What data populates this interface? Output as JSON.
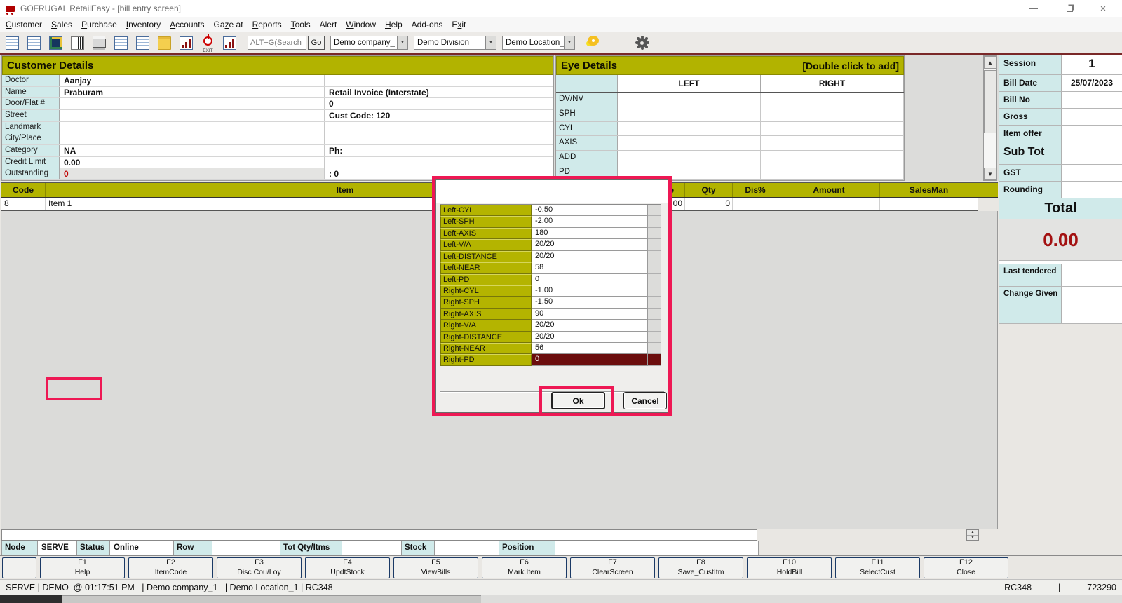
{
  "colors": {
    "accent_olive": "#b2b300",
    "accent_cyan": "#d0eaea",
    "annotation_pink": "#ee1854",
    "selected_maroon": "#6b0d0d",
    "total_red": "#a31111",
    "toolbar_rule_maroon": "#7a2828"
  },
  "titlebar": {
    "title": "GOFRUGAL RetailEasy - [bill entry screen]"
  },
  "menu": [
    {
      "name": "menu-customer",
      "pre": "",
      "u": "C",
      "post": "ustomer"
    },
    {
      "name": "menu-sales",
      "pre": "",
      "u": "S",
      "post": "ales"
    },
    {
      "name": "menu-purchase",
      "pre": "",
      "u": "P",
      "post": "urchase"
    },
    {
      "name": "menu-inventory",
      "pre": "",
      "u": "I",
      "post": "nventory"
    },
    {
      "name": "menu-accounts",
      "pre": "",
      "u": "A",
      "post": "ccounts"
    },
    {
      "name": "menu-gaze-at",
      "pre": "Ga",
      "u": "z",
      "post": "e at"
    },
    {
      "name": "menu-reports",
      "pre": "",
      "u": "R",
      "post": "eports"
    },
    {
      "name": "menu-tools",
      "pre": "",
      "u": "T",
      "post": "ools"
    },
    {
      "name": "menu-alert",
      "pre": "Alert",
      "u": "",
      "post": ""
    },
    {
      "name": "menu-window",
      "pre": "",
      "u": "W",
      "post": "indow"
    },
    {
      "name": "menu-help",
      "pre": "",
      "u": "H",
      "post": "elp"
    },
    {
      "name": "menu-add-ons",
      "pre": "Add-ons",
      "u": "",
      "post": ""
    },
    {
      "name": "menu-exit",
      "pre": "E",
      "u": "x",
      "post": "it"
    }
  ],
  "toolbar": {
    "icons": [
      {
        "name": "billing-icon"
      },
      {
        "name": "sales-bill-icon"
      },
      {
        "name": "customer-photo-icon"
      },
      {
        "name": "barcode-icon"
      },
      {
        "name": "printer-icon"
      },
      {
        "name": "invoice-icon"
      },
      {
        "name": "item-cart-icon"
      },
      {
        "name": "folder-open-icon"
      },
      {
        "name": "sales-chart-icon"
      },
      {
        "name": "exit-power-icon",
        "caption": "EXIT"
      },
      {
        "name": "report-chart-icon"
      }
    ],
    "search": {
      "placeholder": "ALT+G(Search",
      "go": {
        "u": "G",
        "post": "o"
      }
    },
    "dropdowns": [
      {
        "name": "company-dropdown",
        "value": "Demo company_"
      },
      {
        "name": "division-dropdown",
        "value": "Demo Division"
      },
      {
        "name": "location-dropdown",
        "value": "Demo Location_"
      }
    ]
  },
  "customer": {
    "header": "Customer Details",
    "rows": [
      {
        "label": "Doctor",
        "v1": "Aanjay",
        "v2": ""
      },
      {
        "label": "Name",
        "v1": "Praburam",
        "v2": "Retail Invoice (Interstate)"
      },
      {
        "label": "Door/Flat #",
        "v1": "",
        "v2": "0"
      },
      {
        "label": "Street",
        "v1": "",
        "v2": "Cust Code: 120"
      },
      {
        "label": "Landmark",
        "v1": "",
        "v2": ""
      },
      {
        "label": "City/Place",
        "v1": "",
        "v2": ""
      },
      {
        "label": "Category",
        "v1": "NA",
        "v2": "Ph:"
      },
      {
        "label": "Credit Limit",
        "v1": "0.00",
        "v2": ""
      },
      {
        "label": "Outstanding",
        "v1": "0",
        "v2": ": 0",
        "state": "outstanding"
      }
    ]
  },
  "eye": {
    "header": "Eye Details",
    "hint": "[Double click to add]",
    "col_left": "LEFT",
    "col_right": "RIGHT",
    "rows": [
      "DV/NV",
      "SPH",
      "CYL",
      "AXIS",
      "ADD",
      "PD"
    ]
  },
  "sidebar": {
    "rows": [
      {
        "label": "Session",
        "value": "1",
        "state": "session"
      },
      {
        "label": "Bill Date",
        "value": "25/07/2023",
        "state": "billdate"
      },
      {
        "label": "Bill No",
        "value": ""
      },
      {
        "label": "Gross",
        "value": ""
      },
      {
        "label": "Item offer",
        "value": ""
      },
      {
        "label": "Sub Tot",
        "value": "",
        "state": "subtot"
      },
      {
        "label": "GST",
        "value": ""
      },
      {
        "label": "Rounding",
        "value": ""
      }
    ],
    "total_label": "Total",
    "total_value": "0.00",
    "rows2": [
      {
        "label": "Last tendered",
        "value": ""
      },
      {
        "label": "Change Given",
        "value": ""
      },
      {
        "label": "",
        "value": ""
      }
    ]
  },
  "grid": {
    "columns": [
      "Code",
      "Item",
      "Rate",
      "Qty",
      "Dis%",
      "Amount",
      "SalesMan"
    ],
    "row": {
      "code": "8",
      "item": "Item 1",
      "rate": "0.00",
      "qty": "0",
      "amount": "",
      "salesman": ""
    }
  },
  "popup": {
    "rows": [
      {
        "label": "Left-CYL",
        "value": "-0.50"
      },
      {
        "label": "Left-SPH",
        "value": "-2.00"
      },
      {
        "label": "Left-AXIS",
        "value": "180"
      },
      {
        "label": "Left-V/A",
        "value": "20/20"
      },
      {
        "label": "Left-DISTANCE",
        "value": "20/20"
      },
      {
        "label": "Left-NEAR",
        "value": "58"
      },
      {
        "label": "Left-PD",
        "value": "0"
      },
      {
        "label": "Right-CYL",
        "value": "-1.00"
      },
      {
        "label": "Right-SPH",
        "value": "-1.50"
      },
      {
        "label": "Right-AXIS",
        "value": "90"
      },
      {
        "label": "Right-V/A",
        "value": "20/20"
      },
      {
        "label": "Right-DISTANCE",
        "value": "20/20"
      },
      {
        "label": "Right-NEAR",
        "value": "56"
      },
      {
        "label": "Right-PD",
        "value": "0",
        "state": "selected"
      }
    ],
    "ok": {
      "u": "O",
      "post": "k"
    },
    "cancel": "Cancel"
  },
  "statusrow": [
    {
      "label": "Node",
      "value": "SERVE"
    },
    {
      "label": "Status",
      "value": "Online"
    },
    {
      "label": "Row",
      "value": ""
    },
    {
      "label": "Tot Qty/Itms",
      "value": ""
    },
    {
      "label": "Stock",
      "value": ""
    },
    {
      "label": "Position",
      "value": ""
    }
  ],
  "fkeys": [
    {
      "name": "fkey-f1-help",
      "key": "F1",
      "label": "Help"
    },
    {
      "name": "fkey-f2-itemcode",
      "key": "F2",
      "label": "ItemCode"
    },
    {
      "name": "fkey-f3-disc",
      "key": "F3",
      "label": "Disc Cou/Loy"
    },
    {
      "name": "fkey-f4-updtstock",
      "key": "F4",
      "label": "UpdtStock"
    },
    {
      "name": "fkey-f5-viewbills",
      "key": "F5",
      "label": "ViewBills"
    },
    {
      "name": "fkey-f6-markitem",
      "key": "F6",
      "label": "Mark.Item"
    },
    {
      "name": "fkey-f7-clearscreen",
      "key": "F7",
      "label": "ClearScreen"
    },
    {
      "name": "fkey-f8-savecustitm",
      "key": "F8",
      "label": "Save_CustItm"
    },
    {
      "name": "fkey-f10-holdbill",
      "key": "F10",
      "label": "HoldBill"
    },
    {
      "name": "fkey-f11-selectcust",
      "key": "F11",
      "label": "SelectCust"
    },
    {
      "name": "fkey-f12-close",
      "key": "F12",
      "label": "Close"
    }
  ],
  "statusbar": {
    "left": "SERVE | DEMO  @ 01:17:51 PM   | Demo company_1   | Demo Location_1 | RC348",
    "right_code": "RC348",
    "right_sep": "|",
    "right_num": "723290"
  }
}
